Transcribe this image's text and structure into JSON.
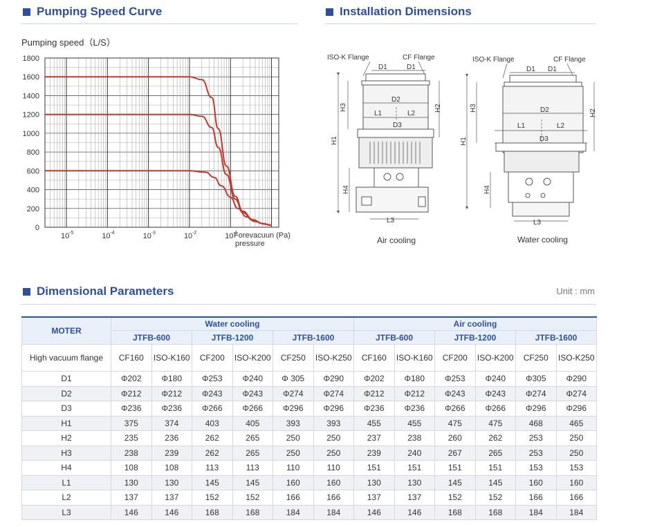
{
  "sections": {
    "curve_title": "Pumping Speed Curve",
    "install_title": "Installation Dimensions",
    "params_title": "Dimensional Parameters"
  },
  "unit": "Unit : mm",
  "chart_data": {
    "type": "line",
    "ylabel": "Pumping speed（L/S）",
    "xlabel_line1": "Forevacuun (Pa)",
    "xlabel_line2": "pressure",
    "y_ticks": [
      "1800",
      "1600",
      "1400",
      "1200",
      "1000",
      "800",
      "600",
      "400",
      "200",
      "0"
    ],
    "x_ticks": [
      {
        "base": "10",
        "exp": "-5"
      },
      {
        "base": "10",
        "exp": "-4"
      },
      {
        "base": "10",
        "exp": "-3"
      },
      {
        "base": "10",
        "exp": "-2"
      },
      {
        "base": "10",
        "exp": "-1"
      }
    ],
    "xscale": "log",
    "xlim": [
      3e-06,
      1.5
    ],
    "ylim": [
      0,
      1800
    ],
    "grid": true,
    "line_color": "#c0392b",
    "series": [
      {
        "x": [
          3e-06,
          0.001,
          0.01,
          0.02,
          0.035,
          0.05,
          0.08,
          0.13,
          0.2,
          0.35,
          0.6,
          1.0
        ],
        "values": [
          1600,
          1600,
          1600,
          1570,
          1380,
          1050,
          650,
          330,
          170,
          80,
          40,
          20
        ]
      },
      {
        "x": [
          3e-06,
          0.001,
          0.01,
          0.02,
          0.035,
          0.05,
          0.08,
          0.13,
          0.2,
          0.35,
          0.6,
          1.0
        ],
        "values": [
          1200,
          1200,
          1200,
          1180,
          1060,
          850,
          560,
          300,
          155,
          75,
          40,
          22
        ]
      },
      {
        "x": [
          3e-06,
          0.001,
          0.01,
          0.025,
          0.04,
          0.06,
          0.1,
          0.15,
          0.25,
          0.4,
          0.7,
          1.0
        ],
        "values": [
          600,
          600,
          600,
          585,
          530,
          440,
          320,
          200,
          110,
          60,
          32,
          22
        ]
      }
    ]
  },
  "diagram": {
    "labels": {
      "iso_k": "ISO-K Flange",
      "cf": "CF Flange",
      "d1": "D1",
      "d2": "D2",
      "d3": "D3",
      "h1": "H1",
      "h2": "H2",
      "h3": "H3",
      "h4": "H4",
      "l1": "L1",
      "l2": "L2",
      "l3": "L3"
    },
    "caption_air": "Air cooling",
    "caption_water": "Water cooling"
  },
  "table": {
    "moter": "MOTER",
    "group_water": "Water cooling",
    "group_air": "Air cooling",
    "models": [
      "JTFB-600",
      "JTFB-1200",
      "JTFB-1600",
      "JTFB-600",
      "JTFB-1200",
      "JTFB-1600"
    ],
    "flange_label": "High vacuum flange",
    "flanges": [
      "CF160",
      "ISO-K160",
      "CF200",
      "ISO-K200",
      "CF250",
      "ISO-K250",
      "CF160",
      "ISO-K160",
      "CF200",
      "ISO-K200",
      "CF250",
      "ISO-K250"
    ],
    "rows": [
      {
        "label": "D1",
        "values": [
          "Φ202",
          "Φ180",
          "Φ253",
          "Φ240",
          "Φ 305",
          "Φ290",
          "Φ202",
          "Φ180",
          "Φ253",
          "Φ240",
          "Φ305",
          "Φ290"
        ]
      },
      {
        "label": "D2",
        "values": [
          "Φ212",
          "Φ212",
          "Φ243",
          "Φ243",
          "Φ274",
          "Φ274",
          "Φ212",
          "Φ212",
          "Φ243",
          "Φ243",
          "Φ274",
          "Φ274"
        ]
      },
      {
        "label": "D3",
        "values": [
          "Φ236",
          "Φ236",
          "Φ266",
          "Φ266",
          "Φ296",
          "Φ296",
          "Φ236",
          "Φ236",
          "Φ266",
          "Φ266",
          "Φ296",
          "Φ296"
        ]
      },
      {
        "label": "H1",
        "values": [
          "375",
          "374",
          "403",
          "405",
          "393",
          "393",
          "455",
          "455",
          "475",
          "475",
          "468",
          "465"
        ]
      },
      {
        "label": "H2",
        "values": [
          "235",
          "236",
          "262",
          "265",
          "250",
          "250",
          "237",
          "238",
          "260",
          "262",
          "253",
          "250"
        ]
      },
      {
        "label": "H3",
        "values": [
          "238",
          "239",
          "262",
          "265",
          "250",
          "250",
          "239",
          "240",
          "267",
          "265",
          "253",
          "250"
        ]
      },
      {
        "label": "H4",
        "values": [
          "108",
          "108",
          "113",
          "113",
          "110",
          "110",
          "151",
          "151",
          "151",
          "151",
          "153",
          "153"
        ]
      },
      {
        "label": "L1",
        "values": [
          "130",
          "130",
          "145",
          "145",
          "160",
          "160",
          "130",
          "130",
          "145",
          "145",
          "160",
          "160"
        ]
      },
      {
        "label": "L2",
        "values": [
          "137",
          "137",
          "152",
          "152",
          "166",
          "166",
          "137",
          "137",
          "152",
          "152",
          "166",
          "166"
        ]
      },
      {
        "label": "L3",
        "values": [
          "146",
          "146",
          "168",
          "168",
          "184",
          "184",
          "146",
          "146",
          "168",
          "168",
          "184",
          "184"
        ]
      }
    ]
  }
}
